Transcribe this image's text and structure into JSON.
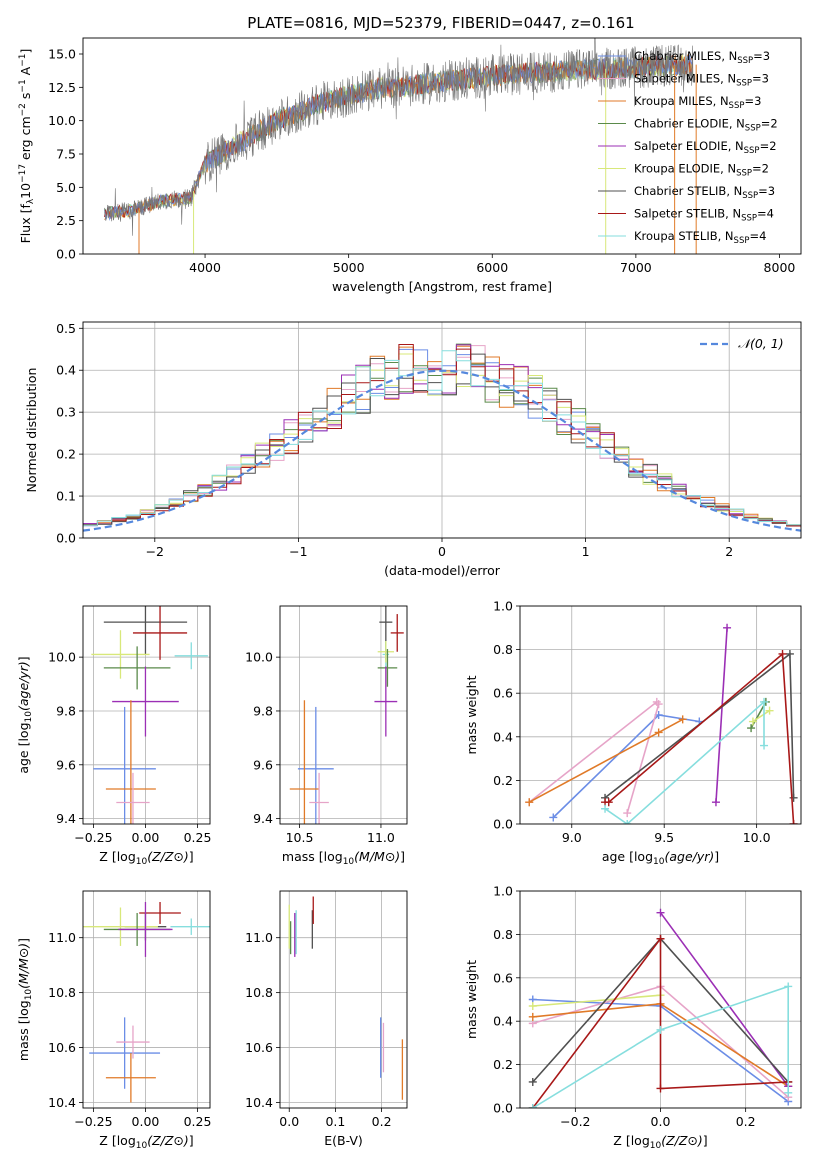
{
  "figure_title": "PLATE=0816, MJD=52379, FIBERID=0447, z=0.161",
  "colors": {
    "Chabrier MILES": "#6b8de6",
    "Salpeter MILES": "#e6a4c8",
    "Kroupa MILES": "#e07a28",
    "Chabrier ELODIE": "#5a8a4a",
    "Salpeter ELODIE": "#9b2fb5",
    "Kroupa ELODIE": "#d8e87a",
    "Chabrier STELIB": "#505050",
    "Salpeter STELIB": "#a81818",
    "Kroupa STELIB": "#86dede",
    "gauss": "#5588dd"
  },
  "chart_data": [
    {
      "id": "spectrum",
      "type": "line",
      "title": "",
      "xlabel": "wavelength [Angstrom, rest frame]",
      "ylabel": "Flux [f_λ 10^-17 erg cm^-2 s^-1 A^-1]",
      "xlim": [
        3150,
        8150
      ],
      "ylim": [
        0,
        16.2
      ],
      "xticks": [
        4000,
        5000,
        6000,
        7000,
        8000
      ],
      "yticks": [
        0.0,
        2.5,
        5.0,
        7.5,
        10.0,
        12.5,
        15.0
      ],
      "grid": false,
      "legend_location": "top-right",
      "legend": [
        {
          "main": "Chabrier MILES, N",
          "sub": "SSP",
          "tail": "=3",
          "color_key": "Chabrier MILES"
        },
        {
          "main": "Salpeter MILES, N",
          "sub": "SSP",
          "tail": "=3",
          "color_key": "Salpeter MILES"
        },
        {
          "main": "Kroupa MILES, N",
          "sub": "SSP",
          "tail": "=3",
          "color_key": "Kroupa MILES"
        },
        {
          "main": "Chabrier ELODIE, N",
          "sub": "SSP",
          "tail": "=2",
          "color_key": "Chabrier ELODIE"
        },
        {
          "main": "Salpeter ELODIE, N",
          "sub": "SSP",
          "tail": "=2",
          "color_key": "Salpeter ELODIE"
        },
        {
          "main": "Kroupa ELODIE, N",
          "sub": "SSP",
          "tail": "=2",
          "color_key": "Kroupa ELODIE"
        },
        {
          "main": "Chabrier STELIB, N",
          "sub": "SSP",
          "tail": "=3",
          "color_key": "Chabrier STELIB"
        },
        {
          "main": "Salpeter STELIB, N",
          "sub": "SSP",
          "tail": "=4",
          "color_key": "Salpeter STELIB"
        },
        {
          "main": "Kroupa STELIB, N",
          "sub": "SSP",
          "tail": "=4",
          "color_key": "Kroupa STELIB"
        }
      ],
      "continuum_x": [
        3300,
        3500,
        3700,
        3900,
        4000,
        4100,
        4300,
        4500,
        4800,
        5000,
        5200,
        5500,
        5800,
        6000,
        6300,
        6600,
        7000,
        7200,
        7400
      ],
      "continuum_y": [
        3.0,
        3.3,
        4.0,
        4.2,
        6.8,
        7.5,
        8.7,
        10.0,
        11.3,
        11.9,
        12.4,
        12.7,
        13.1,
        13.4,
        13.6,
        13.8,
        14.0,
        14.1,
        14.2
      ],
      "dropouts": [
        {
          "x": 3540,
          "key": "Kroupa MILES"
        },
        {
          "x": 3920,
          "key": "Kroupa ELODIE"
        },
        {
          "x": 6790,
          "key": "Kroupa ELODIE"
        },
        {
          "x": 7270,
          "key": "Kroupa MILES"
        },
        {
          "x": 7420,
          "key": "Kroupa MILES"
        }
      ]
    },
    {
      "id": "residuals",
      "type": "histogram",
      "xlabel": "(data-model)/error",
      "ylabel": "Normed distribution",
      "xlim": [
        -2.5,
        2.5
      ],
      "ylim": [
        0,
        0.515
      ],
      "xticks": [
        -2,
        -1,
        0,
        1,
        2
      ],
      "yticks": [
        0.0,
        0.1,
        0.2,
        0.3,
        0.4,
        0.5
      ],
      "grid": true,
      "legend_location": "top-right",
      "gauss_label": "𝒩(0, 1)",
      "bin_width": 0.1,
      "series_keys": [
        "Chabrier MILES",
        "Salpeter MILES",
        "Kroupa MILES",
        "Chabrier ELODIE",
        "Salpeter ELODIE",
        "Kroupa ELODIE",
        "Chabrier STELIB",
        "Salpeter STELIB",
        "Kroupa STELIB"
      ]
    },
    {
      "id": "age_vs_Z",
      "type": "errorbar",
      "xlabel": "Z [log10(Z/Z⊙)]",
      "ylabel": "age  [log10(age/yr)]",
      "xlim": [
        -0.3,
        0.31
      ],
      "ylim": [
        9.38,
        10.19
      ],
      "xticks": [
        -0.25,
        0.0,
        0.25
      ],
      "yticks": [
        9.4,
        9.6,
        9.8,
        10.0
      ],
      "grid": true,
      "points": [
        {
          "key": "Chabrier STELIB",
          "x": 0.0,
          "y": 10.13,
          "xerr": 0.2,
          "yerr": 0.12
        },
        {
          "key": "Salpeter STELIB",
          "x": 0.07,
          "y": 10.09,
          "xerr": 0.13,
          "yerr": 0.1
        },
        {
          "key": "Kroupa STELIB",
          "x": 0.22,
          "y": 10.005,
          "xerr": 0.08,
          "yerr": 0.05
        },
        {
          "key": "Kroupa ELODIE",
          "x": -0.12,
          "y": 10.01,
          "xerr": 0.14,
          "yerr": 0.09
        },
        {
          "key": "Chabrier ELODIE",
          "x": -0.04,
          "y": 9.96,
          "xerr": 0.16,
          "yerr": 0.08
        },
        {
          "key": "Salpeter ELODIE",
          "x": 0.0,
          "y": 9.835,
          "xerr": 0.16,
          "yerr": 0.13
        },
        {
          "key": "Chabrier MILES",
          "x": -0.1,
          "y": 9.585,
          "xerr": 0.15,
          "yerr": 0.23
        },
        {
          "key": "Kroupa MILES",
          "x": -0.07,
          "y": 9.51,
          "xerr": 0.12,
          "yerr": 0.33
        },
        {
          "key": "Salpeter MILES",
          "x": -0.06,
          "y": 9.46,
          "xerr": 0.08,
          "yerr": 0.11
        }
      ]
    },
    {
      "id": "age_vs_mass",
      "type": "errorbar",
      "xlabel": "mass [log10(M/M⊙)]",
      "ylabel": "",
      "xlim": [
        10.38,
        11.16
      ],
      "ylim": [
        9.38,
        10.19
      ],
      "xticks": [
        10.5,
        11.0
      ],
      "yticks": [
        9.4,
        9.6,
        9.8,
        10.0
      ],
      "grid": true,
      "points": [
        {
          "key": "Chabrier STELIB",
          "x": 11.03,
          "y": 10.13,
          "xerr": 0.04,
          "yerr": 0.14
        },
        {
          "key": "Salpeter STELIB",
          "x": 11.1,
          "y": 10.09,
          "xerr": 0.04,
          "yerr": 0.07
        },
        {
          "key": "Kroupa STELIB",
          "x": 11.03,
          "y": 10.01,
          "xerr": 0.02,
          "yerr": 0.05
        },
        {
          "key": "Kroupa ELODIE",
          "x": 11.03,
          "y": 10.02,
          "xerr": 0.05,
          "yerr": 0.04
        },
        {
          "key": "Chabrier ELODIE",
          "x": 11.04,
          "y": 9.96,
          "xerr": 0.06,
          "yerr": 0.07
        },
        {
          "key": "Salpeter ELODIE",
          "x": 11.03,
          "y": 9.835,
          "xerr": 0.07,
          "yerr": 0.13
        },
        {
          "key": "Chabrier MILES",
          "x": 10.6,
          "y": 9.585,
          "xerr": 0.11,
          "yerr": 0.23
        },
        {
          "key": "Kroupa MILES",
          "x": 10.53,
          "y": 9.51,
          "xerr": 0.09,
          "yerr": 0.33
        },
        {
          "key": "Salpeter MILES",
          "x": 10.62,
          "y": 9.46,
          "xerr": 0.06,
          "yerr": 0.11
        }
      ]
    },
    {
      "id": "weight_vs_age",
      "type": "line",
      "xlabel": "age  [log10(age/yr)]",
      "ylabel": "mass weight",
      "xlim": [
        8.72,
        10.24
      ],
      "ylim": [
        0,
        1.0
      ],
      "xticks": [
        9.0,
        9.5,
        10.0
      ],
      "yticks": [
        0.0,
        0.2,
        0.4,
        0.6,
        0.8,
        1.0
      ],
      "grid": true,
      "series": [
        {
          "key": "Chabrier MILES",
          "x": [
            8.9,
            9.47,
            9.69
          ],
          "y": [
            0.03,
            0.5,
            0.47
          ]
        },
        {
          "key": "Salpeter MILES",
          "x": [
            9.3,
            9.47
          ],
          "y": [
            0.05,
            0.55
          ]
        },
        {
          "key": "Salpeter MILES",
          "x": [
            8.77,
            9.46
          ],
          "y": [
            0.1,
            0.56
          ]
        },
        {
          "key": "Kroupa MILES",
          "x": [
            8.77,
            9.47,
            9.6
          ],
          "y": [
            0.1,
            0.42,
            0.48
          ]
        },
        {
          "key": "Chabrier ELODIE",
          "x": [
            9.97,
            10.05
          ],
          "y": [
            0.44,
            0.56
          ]
        },
        {
          "key": "Salpeter ELODIE",
          "x": [
            9.78,
            9.84
          ],
          "y": [
            0.1,
            0.9
          ]
        },
        {
          "key": "Kroupa ELODIE",
          "x": [
            9.98,
            10.07
          ],
          "y": [
            0.47,
            0.52
          ]
        },
        {
          "key": "Chabrier STELIB",
          "x": [
            9.18,
            10.18,
            10.2
          ],
          "y": [
            0.12,
            0.78,
            0.12
          ]
        },
        {
          "key": "Salpeter STELIB",
          "x": [
            9.18,
            9.2,
            10.14,
            10.2
          ],
          "y": [
            0.1,
            0.1,
            0.78,
            0.0
          ]
        },
        {
          "key": "Kroupa STELIB",
          "x": [
            9.18,
            9.3,
            10.04,
            10.04
          ],
          "y": [
            0.07,
            0.0,
            0.56,
            0.36
          ]
        }
      ]
    },
    {
      "id": "mass_vs_Z",
      "type": "errorbar",
      "xlabel": "Z [log10(Z/Z⊙)]",
      "ylabel": "mass [log10(M/M⊙)]",
      "xlim": [
        -0.3,
        0.31
      ],
      "ylim": [
        10.38,
        11.17
      ],
      "xticks": [
        -0.25,
        0.0,
        0.25
      ],
      "yticks": [
        10.4,
        10.6,
        10.8,
        11.0
      ],
      "grid": true,
      "points": [
        {
          "key": "Chabrier STELIB",
          "x": 0.0,
          "y": 11.04,
          "xerr": 0.1,
          "yerr": 0.05
        },
        {
          "key": "Salpeter STELIB",
          "x": 0.07,
          "y": 11.09,
          "xerr": 0.1,
          "yerr": 0.04
        },
        {
          "key": "Kroupa STELIB",
          "x": 0.22,
          "y": 11.04,
          "xerr": 0.1,
          "yerr": 0.03
        },
        {
          "key": "Kroupa ELODIE",
          "x": -0.12,
          "y": 11.04,
          "xerr": 0.18,
          "yerr": 0.07
        },
        {
          "key": "Chabrier ELODIE",
          "x": -0.04,
          "y": 11.03,
          "xerr": 0.16,
          "yerr": 0.06
        },
        {
          "key": "Salpeter ELODIE",
          "x": 0.0,
          "y": 11.03,
          "xerr": 0.13,
          "yerr": 0.1
        },
        {
          "key": "Chabrier MILES",
          "x": -0.1,
          "y": 10.58,
          "xerr": 0.17,
          "yerr": 0.13
        },
        {
          "key": "Kroupa MILES",
          "x": -0.07,
          "y": 10.49,
          "xerr": 0.12,
          "yerr": 0.09
        },
        {
          "key": "Salpeter MILES",
          "x": -0.06,
          "y": 10.62,
          "xerr": 0.08,
          "yerr": 0.06
        }
      ]
    },
    {
      "id": "mass_vs_ebv",
      "type": "errorbar",
      "xlabel": "E(B-V)",
      "ylabel": "",
      "xlim": [
        -0.02,
        0.255
      ],
      "ylim": [
        10.38,
        11.17
      ],
      "xticks": [
        0.0,
        0.1,
        0.2
      ],
      "yticks": [
        10.4,
        10.6,
        10.8,
        11.0
      ],
      "grid": true,
      "points": [
        {
          "key": "Chabrier STELIB",
          "x": 0.05,
          "y": 11.03,
          "xerr": 0.0,
          "yerr": 0.07
        },
        {
          "key": "Salpeter STELIB",
          "x": 0.052,
          "y": 11.1,
          "xerr": 0.0,
          "yerr": 0.05
        },
        {
          "key": "Kroupa STELIB",
          "x": 0.015,
          "y": 11.02,
          "xerr": 0.0,
          "yerr": 0.08
        },
        {
          "key": "Kroupa ELODIE",
          "x": 0.0,
          "y": 11.04,
          "xerr": 0.0,
          "yerr": 0.08
        },
        {
          "key": "Chabrier ELODIE",
          "x": 0.003,
          "y": 11.0,
          "xerr": 0.0,
          "yerr": 0.06
        },
        {
          "key": "Salpeter ELODIE",
          "x": 0.012,
          "y": 11.01,
          "xerr": 0.0,
          "yerr": 0.08
        },
        {
          "key": "Chabrier MILES",
          "x": 0.198,
          "y": 10.6,
          "xerr": 0.0,
          "yerr": 0.11
        },
        {
          "key": "Kroupa MILES",
          "x": 0.245,
          "y": 10.52,
          "xerr": 0.0,
          "yerr": 0.11
        },
        {
          "key": "Salpeter MILES",
          "x": 0.204,
          "y": 10.6,
          "xerr": 0.0,
          "yerr": 0.09
        }
      ]
    },
    {
      "id": "weight_vs_Z",
      "type": "line",
      "xlabel": "Z [log10(Z/Z⊙)]",
      "ylabel": "mass weight",
      "xlim": [
        -0.33,
        0.33
      ],
      "ylim": [
        0,
        1.0
      ],
      "xticks": [
        -0.2,
        0.0,
        0.2
      ],
      "yticks": [
        0.0,
        0.2,
        0.4,
        0.6,
        0.8,
        1.0
      ],
      "grid": true,
      "series": [
        {
          "key": "Chabrier MILES",
          "x": [
            -0.3,
            0.0,
            0.3
          ],
          "y": [
            0.5,
            0.47,
            0.03
          ]
        },
        {
          "key": "Salpeter MILES",
          "x": [
            -0.3,
            0.0,
            0.3
          ],
          "y": [
            0.39,
            0.56,
            0.05
          ]
        },
        {
          "key": "Kroupa MILES",
          "x": [
            -0.3,
            0.0,
            0.3
          ],
          "y": [
            0.42,
            0.48,
            0.1
          ]
        },
        {
          "key": "Kroupa ELODIE",
          "x": [
            -0.3,
            0.0
          ],
          "y": [
            0.47,
            0.52
          ]
        },
        {
          "key": "Salpeter ELODIE",
          "x": [
            0.0,
            0.3
          ],
          "y": [
            0.9,
            0.1
          ]
        },
        {
          "key": "Chabrier STELIB",
          "x": [
            -0.3,
            0.0,
            0.3
          ],
          "y": [
            0.12,
            0.78,
            0.12
          ]
        },
        {
          "key": "Salpeter STELIB",
          "x": [
            -0.3,
            0.0,
            0.0,
            0.3
          ],
          "y": [
            0.0,
            0.78,
            0.09,
            0.12
          ]
        },
        {
          "key": "Kroupa STELIB",
          "x": [
            -0.3,
            0.0,
            0.3,
            0.3
          ],
          "y": [
            0.0,
            0.36,
            0.56,
            0.07
          ]
        }
      ]
    }
  ]
}
